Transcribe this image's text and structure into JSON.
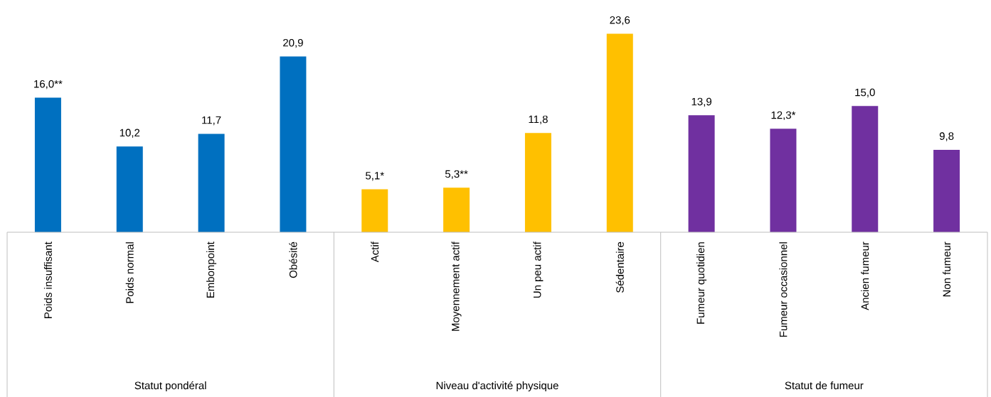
{
  "chart_data": {
    "type": "bar",
    "categories": [
      "Poids insuffisant",
      "Poids normal",
      "Embonpoint",
      "Obésité",
      "Actif",
      "Moyennement actif",
      "Un peu actif",
      "Sédentaire",
      "Fumeur quotidien",
      "Fumeur occasionnel",
      "Ancien fumeur",
      "Non fumeur"
    ],
    "values": [
      16.0,
      10.2,
      11.7,
      20.9,
      5.1,
      5.3,
      11.8,
      23.6,
      13.9,
      12.3,
      15.0,
      9.8
    ],
    "value_labels": [
      "16,0**",
      "10,2",
      "11,7",
      "20,9",
      "5,1*",
      "5,3**",
      "11,8",
      "23,6",
      "13,9",
      "12,3*",
      "15,0",
      "9,8"
    ],
    "colors": [
      "#0070c0",
      "#0070c0",
      "#0070c0",
      "#0070c0",
      "#ffc000",
      "#ffc000",
      "#ffc000",
      "#ffc000",
      "#7030a0",
      "#7030a0",
      "#7030a0",
      "#7030a0"
    ],
    "annotations": [
      "Statut pondéral",
      "Niveau d'activité physique",
      "Statut de fumeur"
    ]
  }
}
